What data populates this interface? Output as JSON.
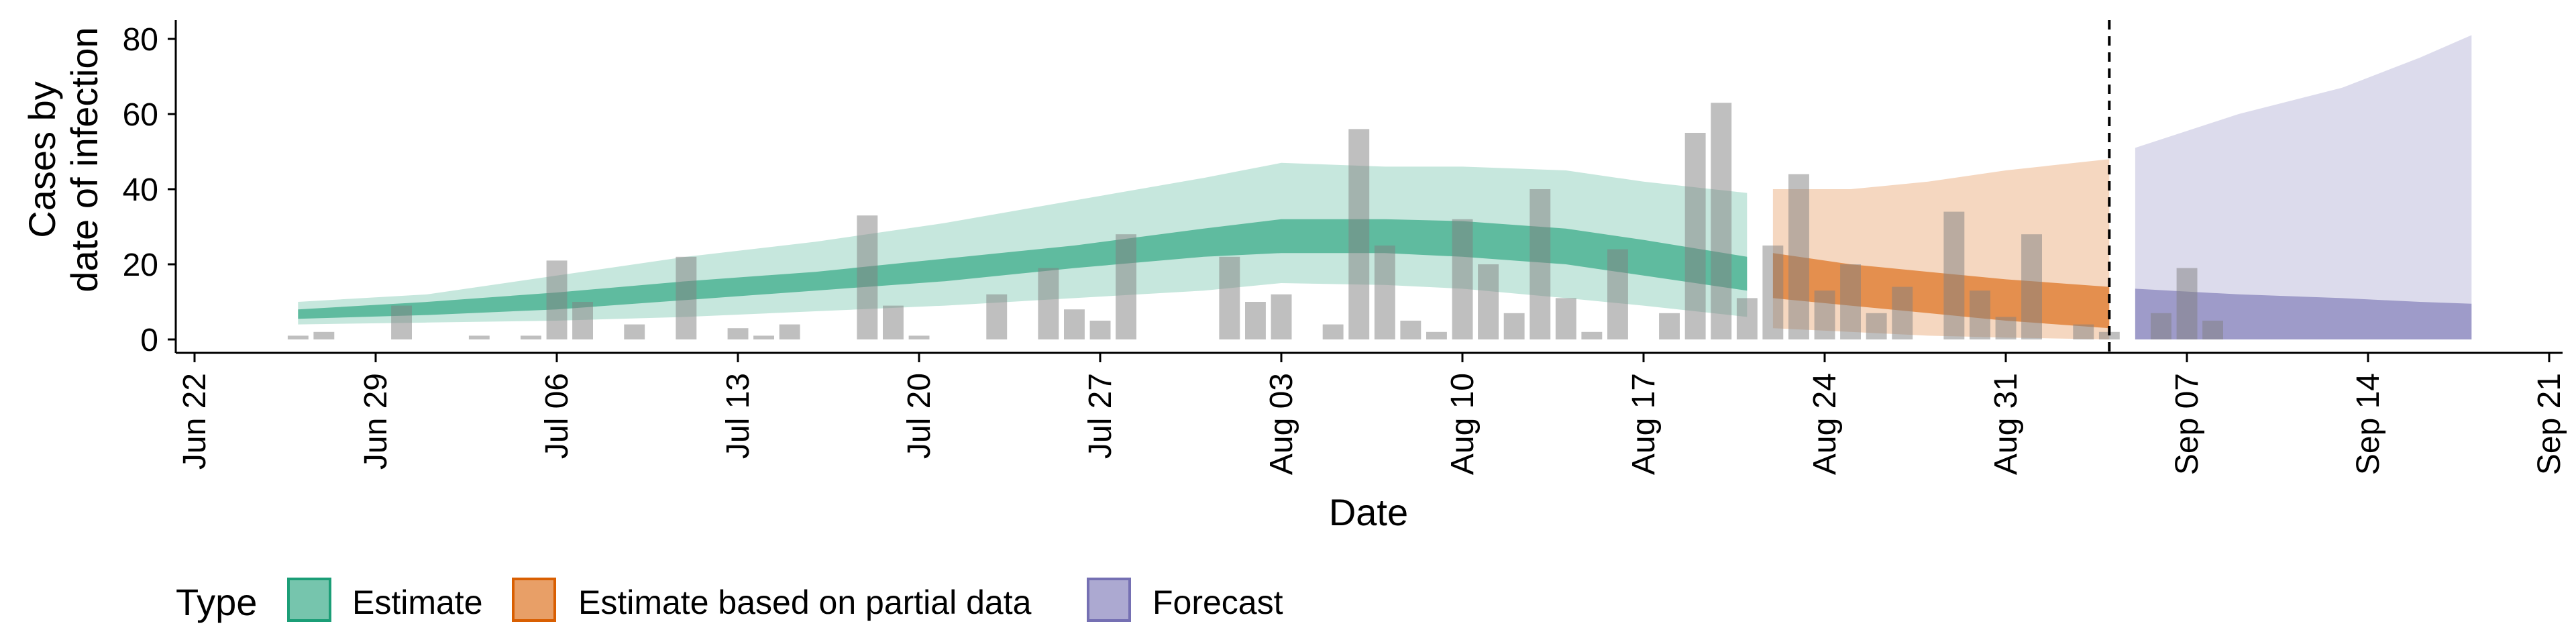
{
  "chart_data": {
    "type": "bar",
    "title": "",
    "xlabel": "Date",
    "ylabel_lines": [
      "Cases by",
      "date of infection"
    ],
    "ylim": [
      0,
      85
    ],
    "yticks": [
      0,
      20,
      40,
      60,
      80
    ],
    "x_start": "2020-06-22",
    "x_end": "2020-09-21",
    "x_ticks": [
      {
        "date": "2020-06-22",
        "label": "Jun 22"
      },
      {
        "date": "2020-06-29",
        "label": "Jun 29"
      },
      {
        "date": "2020-07-06",
        "label": "Jul 06"
      },
      {
        "date": "2020-07-13",
        "label": "Jul 13"
      },
      {
        "date": "2020-07-20",
        "label": "Jul 20"
      },
      {
        "date": "2020-07-27",
        "label": "Jul 27"
      },
      {
        "date": "2020-08-03",
        "label": "Aug 03"
      },
      {
        "date": "2020-08-10",
        "label": "Aug 10"
      },
      {
        "date": "2020-08-17",
        "label": "Aug 17"
      },
      {
        "date": "2020-08-24",
        "label": "Aug 24"
      },
      {
        "date": "2020-08-31",
        "label": "Aug 31"
      },
      {
        "date": "2020-09-07",
        "label": "Sep 07"
      },
      {
        "date": "2020-09-14",
        "label": "Sep 14"
      },
      {
        "date": "2020-09-21",
        "label": "Sep 21"
      }
    ],
    "cases": {
      "start_date": "2020-06-26",
      "values": [
        1,
        2,
        0,
        0,
        9,
        0,
        0,
        1,
        0,
        1,
        21,
        10,
        0,
        4,
        0,
        22,
        0,
        3,
        1,
        4,
        0,
        0,
        33,
        9,
        1,
        0,
        0,
        12,
        0,
        19,
        8,
        5,
        28,
        0,
        0,
        0,
        22,
        10,
        12,
        0,
        4,
        56,
        25,
        5,
        2,
        32,
        20,
        7,
        40,
        11,
        2,
        24,
        0,
        7,
        55,
        63,
        11,
        25,
        44,
        13,
        20,
        7,
        14,
        0,
        34,
        13,
        6,
        28,
        0,
        4,
        2,
        0,
        7,
        19,
        5
      ]
    },
    "dashed_line_date": "2020-09-04",
    "series": [
      {
        "name": "Estimate",
        "fill": "#1B9E77",
        "outer_opacity": 0.25,
        "inner_opacity": 0.6,
        "x": [
          "2020-06-26",
          "2020-07-01",
          "2020-07-06",
          "2020-07-11",
          "2020-07-16",
          "2020-07-21",
          "2020-07-26",
          "2020-07-31",
          "2020-08-03",
          "2020-08-07",
          "2020-08-10",
          "2020-08-14",
          "2020-08-17",
          "2020-08-21"
        ],
        "upper90": [
          10,
          12,
          17,
          22,
          26,
          31,
          37,
          43,
          47,
          46,
          46,
          45,
          42,
          39
        ],
        "upper50": [
          8,
          10,
          12.5,
          15.5,
          18,
          21.5,
          25,
          29.5,
          32,
          32,
          31.5,
          29.5,
          26.5,
          22
        ],
        "lower50": [
          5.5,
          6.5,
          8,
          10.5,
          13,
          15.5,
          19,
          22,
          23,
          23,
          22,
          20,
          17,
          13
        ],
        "lower90": [
          4,
          4.5,
          5,
          6,
          7.5,
          9,
          11,
          13,
          15,
          14.5,
          13.5,
          11,
          9,
          6
        ]
      },
      {
        "name": "Estimate based on partial data",
        "fill": "#D95F02",
        "outer_opacity": 0.25,
        "inner_opacity": 0.6,
        "x": [
          "2020-08-22",
          "2020-08-25",
          "2020-08-28",
          "2020-08-31",
          "2020-09-04"
        ],
        "upper90": [
          40,
          40,
          42,
          45,
          48
        ],
        "upper50": [
          23,
          20,
          18,
          16,
          14
        ],
        "lower50": [
          11,
          9,
          7,
          5,
          3
        ],
        "lower90": [
          3,
          2,
          1,
          0.5,
          0
        ]
      },
      {
        "name": "Forecast",
        "fill": "#7570B3",
        "outer_opacity": 0.25,
        "inner_opacity": 0.6,
        "x": [
          "2020-09-05",
          "2020-09-09",
          "2020-09-13",
          "2020-09-16",
          "2020-09-18"
        ],
        "upper90": [
          51,
          60,
          67,
          75,
          81
        ],
        "upper50": [
          13.5,
          12,
          11,
          10,
          9.5
        ],
        "lower50": [
          0,
          0,
          0,
          0,
          0
        ],
        "lower90": [
          0,
          0,
          0,
          0,
          0
        ]
      }
    ],
    "legend": {
      "title": "Type",
      "position": "bottom",
      "items": [
        "Estimate",
        "Estimate based on partial data",
        "Forecast"
      ]
    }
  }
}
